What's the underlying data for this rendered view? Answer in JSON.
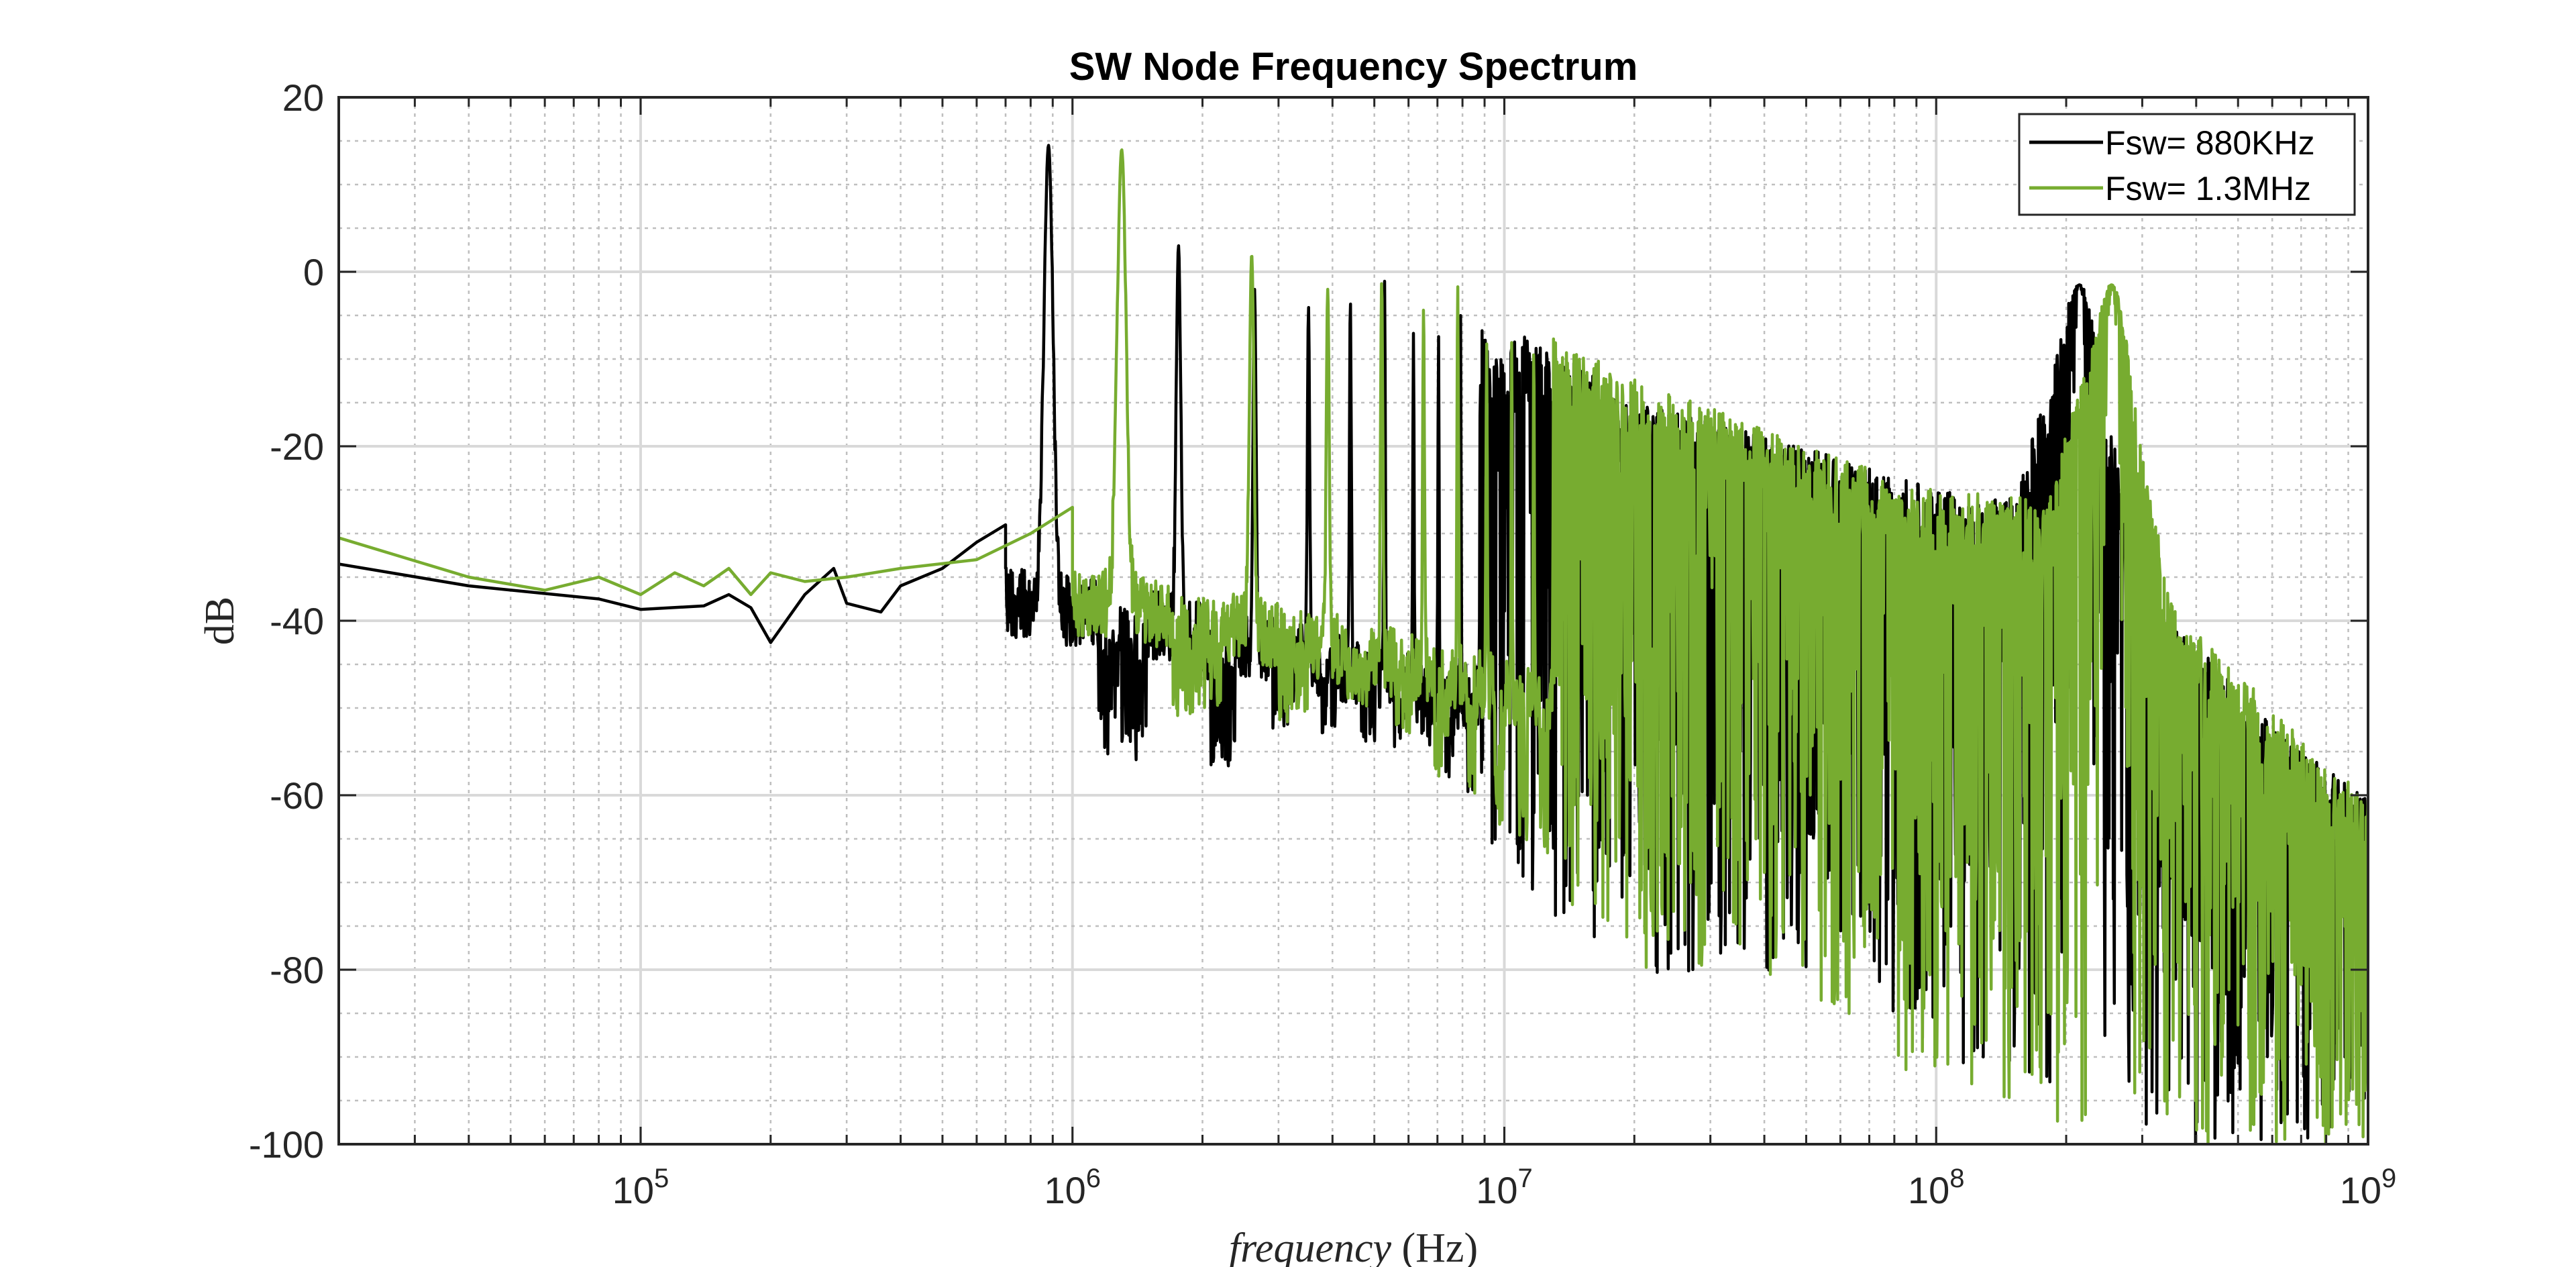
{
  "chart_data": {
    "type": "line",
    "title": "SW Node Frequency Spectrum",
    "xlabel_italic": "frequency",
    "xlabel_unit": "(Hz)",
    "ylabel": "dB",
    "xscale": "log",
    "xlim": [
      20000,
      1000000000
    ],
    "ylim": [
      -100,
      20
    ],
    "grid": true,
    "minor_grid": true,
    "legend_position": "top-right",
    "x_tick_values": [
      100000,
      1000000,
      10000000,
      100000000,
      1000000000
    ],
    "x_tick_labels": [
      {
        "base": "10",
        "exp": "5"
      },
      {
        "base": "10",
        "exp": "6"
      },
      {
        "base": "10",
        "exp": "7"
      },
      {
        "base": "10",
        "exp": "8"
      },
      {
        "base": "10",
        "exp": "9"
      }
    ],
    "y_ticks": [
      20,
      0,
      -20,
      -40,
      -60,
      -80,
      -100
    ],
    "y_tick_labels": [
      "20",
      "0",
      "-20",
      "-40",
      "-60",
      "-80",
      "-100"
    ],
    "series": [
      {
        "name": "Fsw= 880KHz",
        "color": "#000000",
        "fsw": 880000,
        "noise_peak_freq": 215000000,
        "anchors": [
          [
            20000,
            -33.5
          ],
          [
            40000,
            -36
          ],
          [
            80000,
            -37.5
          ],
          [
            100000,
            -38.7
          ],
          [
            140000,
            -38.3
          ],
          [
            160000,
            -37
          ],
          [
            180000,
            -38.5
          ],
          [
            200000,
            -42.5
          ],
          [
            240000,
            -37
          ],
          [
            280000,
            -34
          ],
          [
            300000,
            -38
          ],
          [
            360000,
            -39
          ],
          [
            400000,
            -36
          ],
          [
            500000,
            -34
          ],
          [
            600000,
            -31
          ],
          [
            700000,
            -29
          ]
        ],
        "peaks": [
          [
            880000,
            14.5
          ],
          [
            1760000,
            3
          ],
          [
            2640000,
            -2
          ],
          [
            3520000,
            -4
          ],
          [
            4400000,
            -3
          ],
          [
            5280000,
            -1
          ],
          [
            6160000,
            -7
          ],
          [
            7040000,
            -5
          ],
          [
            7920000,
            -6
          ],
          [
            8800000,
            -9
          ],
          [
            9680000,
            -8
          ]
        ],
        "valleys": [
          [
            2000000,
            -61
          ],
          [
            2200000,
            -62.5
          ],
          [
            3000000,
            -55
          ],
          [
            3800000,
            -56
          ],
          [
            4800000,
            -57
          ],
          [
            5800000,
            -58
          ],
          [
            6800000,
            -60
          ],
          [
            7800000,
            -62
          ],
          [
            12000000,
            -73
          ],
          [
            20000000,
            -82
          ],
          [
            60000000,
            -80
          ],
          [
            110000000,
            -91
          ],
          [
            200000000,
            -97
          ],
          [
            280000000,
            -100
          ],
          [
            600000000,
            -100
          ]
        ],
        "envelope_tail": [
          [
            10000000,
            -5
          ],
          [
            20000000,
            -15
          ],
          [
            50000000,
            -20
          ],
          [
            100000000,
            -25
          ],
          [
            150000000,
            -26
          ],
          [
            215000000,
            -1.5
          ],
          [
            300000000,
            -35
          ],
          [
            500000000,
            -48
          ],
          [
            700000000,
            -55
          ],
          [
            1000000000,
            -60
          ]
        ]
      },
      {
        "name": "Fsw= 1.3MHz",
        "color": "#77ac30",
        "fsw": 1300000,
        "noise_peak_freq": 255000000,
        "anchors": [
          [
            20000,
            -30.5
          ],
          [
            40000,
            -35
          ],
          [
            60000,
            -36.5
          ],
          [
            80000,
            -35
          ],
          [
            100000,
            -37
          ],
          [
            120000,
            -34.5
          ],
          [
            140000,
            -36
          ],
          [
            160000,
            -34
          ],
          [
            180000,
            -37
          ],
          [
            200000,
            -34.5
          ],
          [
            240000,
            -35.5
          ],
          [
            300000,
            -35
          ],
          [
            400000,
            -34
          ],
          [
            600000,
            -33
          ],
          [
            800000,
            -30
          ],
          [
            1000000,
            -27
          ]
        ],
        "peaks": [
          [
            1300000,
            14
          ],
          [
            2600000,
            2
          ],
          [
            3900000,
            -2
          ],
          [
            5200000,
            -1
          ],
          [
            6500000,
            -4
          ],
          [
            7800000,
            -1.5
          ],
          [
            9100000,
            -8
          ]
        ],
        "valleys": [
          [
            3300000,
            -55
          ],
          [
            4000000,
            -50
          ],
          [
            5800000,
            -56
          ],
          [
            7000000,
            -62
          ],
          [
            9000000,
            -67
          ],
          [
            20000000,
            -80
          ],
          [
            50000000,
            -82
          ],
          [
            80000000,
            -91
          ],
          [
            140000000,
            -96
          ],
          [
            250000000,
            -100
          ],
          [
            900000000,
            -100
          ]
        ],
        "envelope_tail": [
          [
            10000000,
            -5
          ],
          [
            20000000,
            -12
          ],
          [
            50000000,
            -20
          ],
          [
            100000000,
            -25
          ],
          [
            180000000,
            -26
          ],
          [
            255000000,
            -1.5
          ],
          [
            350000000,
            -38
          ],
          [
            600000000,
            -50
          ],
          [
            800000000,
            -56
          ],
          [
            1000000000,
            -60
          ]
        ]
      }
    ]
  }
}
